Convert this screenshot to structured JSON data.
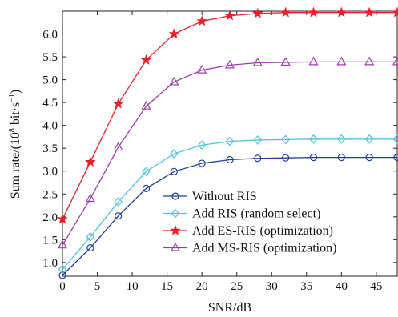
{
  "chart_data": {
    "type": "line",
    "title": "",
    "xlabel": "SNR/dB",
    "ylabel_main": "Sum rate/(10",
    "ylabel_sup": "8",
    "ylabel_unit": " bit·s",
    "ylabel_unit_sup": "−1",
    "ylabel_close": ")",
    "xlim": [
      0,
      48
    ],
    "ylim": [
      0.7,
      6.5
    ],
    "x_ticks": [
      0,
      5,
      10,
      15,
      20,
      25,
      30,
      35,
      40,
      45
    ],
    "x_tick_labels": [
      "0",
      "5",
      "10",
      "15",
      "20",
      "25",
      "30",
      "35",
      "40",
      "45"
    ],
    "y_ticks": [
      1.0,
      1.5,
      2.0,
      2.5,
      3.0,
      3.5,
      4.0,
      4.5,
      5.0,
      5.5,
      6.0
    ],
    "y_tick_labels": [
      "1.0",
      "1.5",
      "2.0",
      "2.5",
      "3.0",
      "3.5",
      "4.0",
      "4.5",
      "5.0",
      "5.5",
      "6.0"
    ],
    "grid": false,
    "legend_position": "bottom-right",
    "x": [
      0,
      4,
      8,
      12,
      16,
      20,
      24,
      28,
      32,
      36,
      40,
      44,
      48
    ],
    "series": [
      {
        "name": "Without RIS",
        "color": "#1f3f99",
        "marker": "circle",
        "values": [
          0.72,
          1.32,
          2.02,
          2.62,
          2.99,
          3.17,
          3.25,
          3.28,
          3.29,
          3.3,
          3.3,
          3.3,
          3.3
        ]
      },
      {
        "name": "Add RIS (random select)",
        "color": "#4fc3d8",
        "marker": "diamond",
        "values": [
          0.85,
          1.56,
          2.33,
          2.99,
          3.38,
          3.57,
          3.65,
          3.68,
          3.69,
          3.7,
          3.7,
          3.7,
          3.7
        ]
      },
      {
        "name": "Add ES-RIS (optimization)",
        "color": "#e8202a",
        "marker": "star",
        "values": [
          1.95,
          3.2,
          4.47,
          5.43,
          6.0,
          6.28,
          6.4,
          6.45,
          6.47,
          6.47,
          6.47,
          6.47,
          6.47
        ]
      },
      {
        "name": "Add MS-RIS (optimization)",
        "color": "#9b3fa8",
        "marker": "triangle",
        "values": [
          1.38,
          2.4,
          3.52,
          4.42,
          4.95,
          5.21,
          5.32,
          5.37,
          5.38,
          5.39,
          5.39,
          5.39,
          5.39
        ]
      }
    ]
  }
}
